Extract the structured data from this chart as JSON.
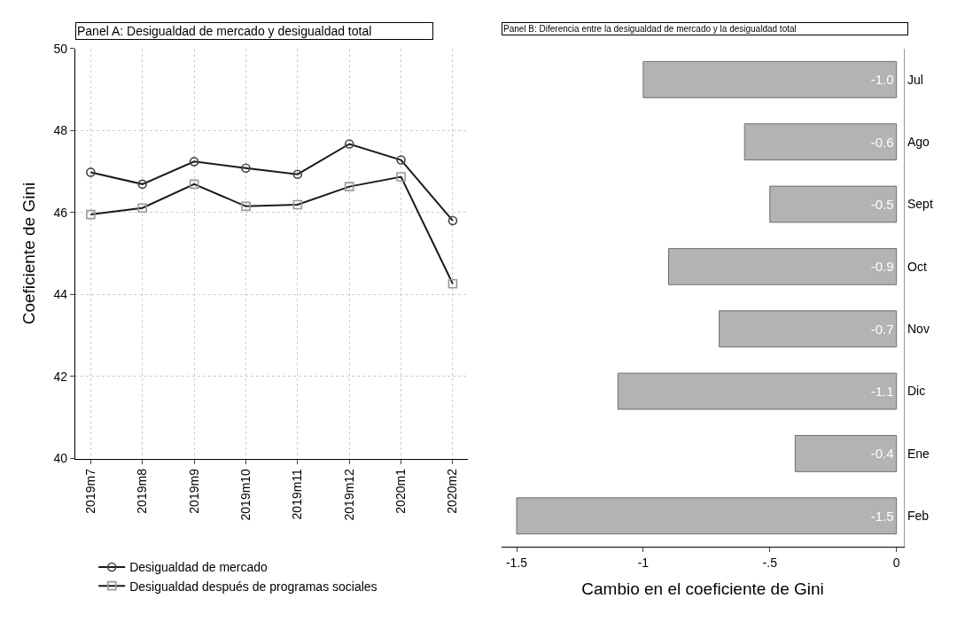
{
  "chart_data": [
    {
      "type": "line",
      "title": "Panel A: Desigualdad de mercado y desigualdad total",
      "ylabel": "Coeficiente de Gini",
      "categories": [
        "2019m7",
        "2019m8",
        "2019m9",
        "2019m10",
        "2019m11",
        "2019m12",
        "2020m1",
        "2020m2"
      ],
      "series": [
        {
          "name": "Desigualdad de mercado",
          "color": "#444444",
          "marker": "circle",
          "values": [
            46.98,
            46.69,
            47.24,
            47.08,
            46.93,
            47.67,
            47.28,
            45.8
          ]
        },
        {
          "name": "Desigualdad después de programas sociales",
          "color": "#999999",
          "marker": "square",
          "values": [
            45.95,
            46.11,
            46.69,
            46.15,
            46.19,
            46.63,
            46.87,
            44.26
          ]
        }
      ],
      "ylim": [
        40,
        50
      ],
      "yticks": [
        40,
        42,
        44,
        46,
        48,
        50
      ],
      "grid": true,
      "legend": "bottom",
      "line_style": "solid"
    },
    {
      "type": "bar",
      "orientation": "horizontal",
      "title": "Panel B: Diferencia entre la desigualdad de mercado y la desigualdad total",
      "xlabel": "Cambio en el coeficiente de Gini",
      "categories": [
        "Jul",
        "Ago",
        "Sept",
        "Oct",
        "Nov",
        "Dic",
        "Ene",
        "Feb"
      ],
      "values": [
        -1.0,
        -0.6,
        -0.5,
        -0.9,
        -0.7,
        -1.1,
        -0.4,
        -1.5
      ],
      "color": "#b3b3b3",
      "xlim": [
        -1.56,
        0.03
      ],
      "xticks": [
        {
          "value": -1.5,
          "label": "-1.5"
        },
        {
          "value": -1,
          "label": "-1"
        },
        {
          "value": -0.5,
          "label": "-.5"
        },
        {
          "value": 0,
          "label": "0"
        }
      ],
      "value_labels": [
        "-1.0",
        "-0.6",
        "-0.5",
        "-0.9",
        "-0.7",
        "-1.1",
        "-0.4",
        "-1.5"
      ],
      "grid": false,
      "legend": false
    }
  ]
}
